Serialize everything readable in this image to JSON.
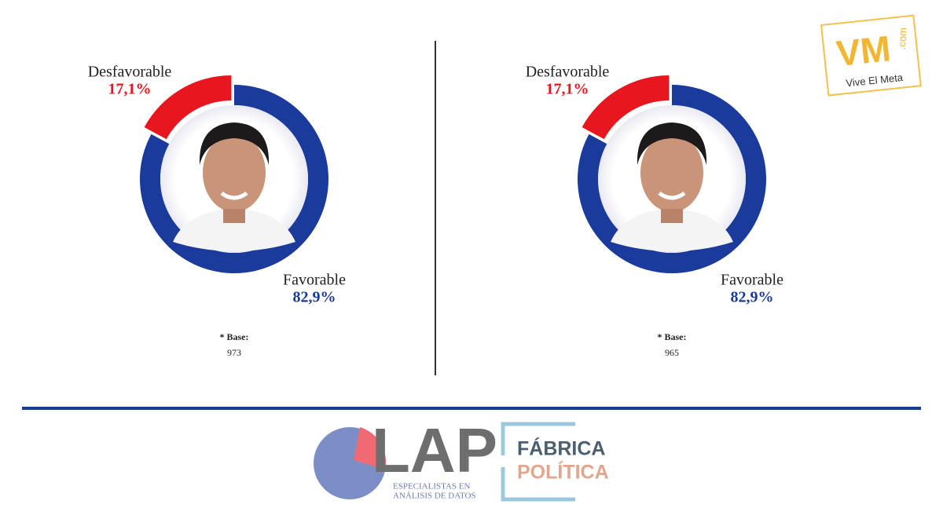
{
  "chart_data": [
    {
      "type": "donut",
      "categories": [
        "Favorable",
        "Desfavorable"
      ],
      "values": [
        82.9,
        17.1
      ],
      "value_labels": [
        "82,9%",
        "17,1%"
      ],
      "colors": [
        "#1a3a9c",
        "#e8161e"
      ],
      "base_label": "* Base:",
      "base": 973
    },
    {
      "type": "donut",
      "categories": [
        "Favorable",
        "Desfavorable"
      ],
      "values": [
        82.9,
        17.1
      ],
      "value_labels": [
        "82,9%",
        "17,1%"
      ],
      "colors": [
        "#1a3a9c",
        "#e8161e"
      ],
      "base_label": "* Base:",
      "base": 965
    }
  ],
  "logos": {
    "vive": {
      "mark": "VM",
      "domain": ".com",
      "tagline": "Vive El Meta"
    },
    "lap": {
      "name": "LAP",
      "line1": "ESPECIALISTAS EN",
      "line2": "ANÁLISIS DE DATOS"
    },
    "fabrica": {
      "line1": "FÁBRICA",
      "line2": "POLÍTICA"
    }
  }
}
